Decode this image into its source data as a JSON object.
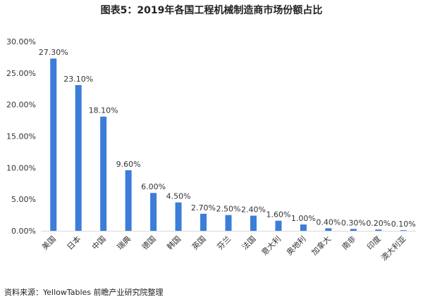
{
  "chart_data": {
    "type": "bar",
    "title": "图表5：2019年各国工程机械制造商市场份额占比",
    "categories": [
      "美国",
      "日本",
      "中国",
      "瑞典",
      "德国",
      "韩国",
      "英国",
      "芬兰",
      "法国",
      "意大利",
      "奥地利",
      "加拿大",
      "南非",
      "印度",
      "澳大利亚"
    ],
    "values": [
      27.3,
      23.1,
      18.1,
      9.6,
      6.0,
      4.5,
      2.7,
      2.5,
      2.4,
      1.6,
      1.0,
      0.4,
      0.3,
      0.2,
      0.1
    ],
    "value_labels": [
      "27.30%",
      "23.10%",
      "18.10%",
      "9.60%",
      "6.00%",
      "4.50%",
      "2.70%",
      "2.50%",
      "2.40%",
      "1.60%",
      "1.00%",
      "0.40%",
      "0.30%",
      "0.20%",
      "0.10%"
    ],
    "yticks": [
      0,
      5,
      10,
      15,
      20,
      25,
      30
    ],
    "ytick_labels": [
      "0.00%",
      "5.00%",
      "10.00%",
      "15.00%",
      "20.00%",
      "25.00%",
      "30.00%"
    ],
    "ylim": [
      0,
      30
    ],
    "xlabel": "",
    "ylabel": "",
    "grid": false,
    "legend": "none",
    "bar_color": "#3b7dd8"
  },
  "source": "资料来源：YellowTables 前瞻产业研究院整理"
}
